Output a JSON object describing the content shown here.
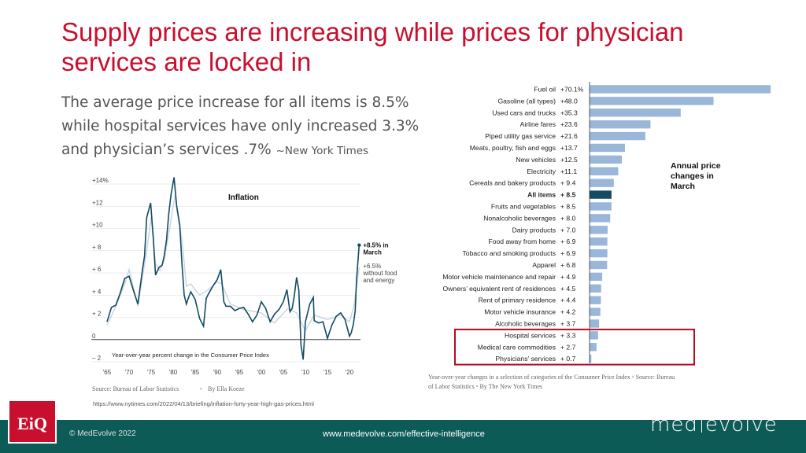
{
  "header": {
    "title": "Supply prices are increasing while prices for physician services are locked in",
    "subtitle_main": "The average price increase for all items is 8.5% while hospital services have only increased 3.3% and physician’s services .7%",
    "subtitle_source": "~New York Times"
  },
  "footer": {
    "copyright": "© MedEvolve 2022",
    "url": "www.medevolve.com/effective-intelligence",
    "logo_left": "EiQ",
    "logo_right_a": "med",
    "logo_right_b": "evolve"
  },
  "nyt_url": "https://www.nytimes.com/2022/04/13/briefing/inflation-forty-year-high-gas-prices.html",
  "colors": {
    "brand_red": "#c8102e",
    "footer_teal": "#0c5b57",
    "bar_blue": "#9ab6d9",
    "bar_highlight": "#134b63",
    "line_dark": "#134b63",
    "line_light": "#c9d6e3"
  },
  "chart_data": [
    {
      "type": "line",
      "title": "Inflation",
      "note": "Year-over-year percent change in the Consumer Price Index",
      "source": "Source: Bureau of Labor Statistics",
      "byline": "By Ella Koeze",
      "xlim": [
        1965,
        2022.5
      ],
      "ylim": [
        -2,
        14
      ],
      "x_tick_labels": [
        "'65",
        "'70",
        "'75",
        "'80",
        "'85",
        "'90",
        "'95",
        "'00",
        "'05",
        "'10",
        "'15",
        "'20"
      ],
      "x_tick_values": [
        1965,
        1970,
        1975,
        1980,
        1985,
        1990,
        1995,
        2000,
        2005,
        2010,
        2015,
        2020
      ],
      "y_tick_labels": [
        "+14%",
        "+12",
        "+10",
        "+ 8",
        "+ 6",
        "+ 4",
        "+ 2",
        "0",
        "– 2"
      ],
      "y_tick_values": [
        14,
        12,
        10,
        8,
        6,
        4,
        2,
        0,
        -2
      ],
      "annotations": [
        {
          "text_a": "+8.5% in",
          "text_b": "March",
          "x": 2022.2,
          "y": 8.5
        },
        {
          "text_a": "+6.5%",
          "text_b": "without food",
          "text_c": "and energy",
          "x": 2022.2,
          "y": 6.5
        }
      ],
      "series": [
        {
          "name": "",
          "x": [
            1965,
            1966,
            1967,
            1968,
            1969,
            1970,
            1971,
            1972,
            1973,
            1973.5,
            1974,
            1974.9,
            1975.5,
            1976,
            1976.8,
            1977.5,
            1978,
            1978.5,
            1979,
            1979.5,
            1980.2,
            1980.8,
            1981.5,
            1982,
            1982.5,
            1983,
            1983.5,
            1984,
            1985,
            1986,
            1986.9,
            1987.5,
            1988,
            1989,
            1990,
            1990.8,
            1991.5,
            1992,
            1993,
            1994,
            1995,
            1996,
            1997,
            1998,
            1999,
            2000,
            2001,
            2002,
            2003,
            2004,
            2005,
            2005.8,
            2006.5,
            2007,
            2007.5,
            2008,
            2008.5,
            2009,
            2009.5,
            2010,
            2011,
            2011.8,
            2012,
            2013,
            2014,
            2015,
            2016,
            2017,
            2018,
            2019,
            2020,
            2020.4,
            2020.9,
            2021.3,
            2021.6,
            2022.2
          ],
          "values": [
            1.6,
            2.9,
            3.1,
            4.2,
            5.5,
            5.7,
            4.4,
            3.2,
            6.2,
            7.5,
            11.0,
            12.3,
            9.1,
            5.8,
            6.5,
            6.7,
            7.6,
            9.0,
            11.3,
            13.0,
            14.6,
            12.0,
            10.3,
            6.8,
            4.0,
            3.2,
            3.8,
            4.3,
            3.6,
            1.9,
            1.2,
            3.7,
            4.1,
            4.8,
            5.4,
            6.3,
            3.4,
            3.0,
            3.0,
            2.6,
            2.8,
            2.9,
            2.3,
            1.6,
            2.2,
            3.4,
            2.8,
            1.6,
            2.3,
            2.7,
            3.4,
            4.5,
            2.5,
            2.8,
            4.0,
            5.6,
            4.5,
            -0.5,
            -1.8,
            1.6,
            3.2,
            3.8,
            1.7,
            1.5,
            1.6,
            0.1,
            1.3,
            2.1,
            2.4,
            1.8,
            0.3,
            0.6,
            1.4,
            2.6,
            5.4,
            8.5
          ]
        },
        {
          "name": "without food and energy",
          "x": [
            1965,
            1967,
            1969,
            1970,
            1972,
            1974,
            1975,
            1976,
            1977,
            1978,
            1979,
            1980,
            1980.5,
            1981,
            1982,
            1983,
            1984,
            1986,
            1988,
            1990,
            1991,
            1993,
            1996,
            2000,
            2003,
            2006,
            2008,
            2010,
            2012,
            2015,
            2018,
            2020,
            2021,
            2022.2
          ],
          "values": [
            1.3,
            3.0,
            5.0,
            6.3,
            3.0,
            8.0,
            11.0,
            6.8,
            6.2,
            7.2,
            9.5,
            12.0,
            13.0,
            11.3,
            9.0,
            4.8,
            5.0,
            4.0,
            4.5,
            5.2,
            5.0,
            3.2,
            2.7,
            2.4,
            1.5,
            2.8,
            2.4,
            0.8,
            2.2,
            1.8,
            2.2,
            1.6,
            3.0,
            6.5
          ]
        }
      ]
    },
    {
      "type": "bar",
      "orientation": "horizontal",
      "title_lines": [
        "Annual price",
        "changes in",
        "March"
      ],
      "caption": "Year-over-year changes in a selection of categories of the Consumer Price Index",
      "source": "Source: Bureau of Labor Statistics",
      "byline": "By The New York Times",
      "highlight": "All items",
      "boxed": [
        "Hospital services",
        "Medical care commodities",
        "Physicians’ services"
      ],
      "categories": [
        "Fuel oil",
        "Gasoline (all types)",
        "Used cars and trucks",
        "Airline fares",
        "Piped utility gas service",
        "Meats, poultry, fish and eggs",
        "New vehicles",
        "Electricity",
        "Cereals and bakery products",
        "All items",
        "Fruits and vegetables",
        "Nonalcoholic beverages",
        "Dairy products",
        "Food away from home",
        "Tobacco and smoking products",
        "Apparel",
        "Motor vehicle maintenance and repair",
        "Owners’ equivalent rent of residences",
        "Rent of primary residence",
        "Motor vehicle insurance",
        "Alcoholic beverages",
        "Hospital services",
        "Medical care commodities",
        "Physicians’ services"
      ],
      "values": [
        70.1,
        48.0,
        35.3,
        23.6,
        21.6,
        13.7,
        12.5,
        11.1,
        9.4,
        8.5,
        8.5,
        8.0,
        7.0,
        6.9,
        6.9,
        6.8,
        4.9,
        4.5,
        4.4,
        4.2,
        3.7,
        3.3,
        2.7,
        0.7
      ],
      "value_labels": [
        "+70.1%",
        "+48.0",
        "+35.3",
        "+23.6",
        "+21.6",
        "+13.7",
        "+12.5",
        "+11.1",
        "+ 9.4",
        "+ 8.5",
        "+ 8.5",
        "+ 8.0",
        "+ 7.0",
        "+ 6.9",
        "+ 6.9",
        "+ 6.8",
        "+ 4.9",
        "+ 4.5",
        "+ 4.4",
        "+ 4.2",
        "+ 3.7",
        "+ 3.3",
        "+ 2.7",
        "+ 0.7"
      ]
    }
  ]
}
